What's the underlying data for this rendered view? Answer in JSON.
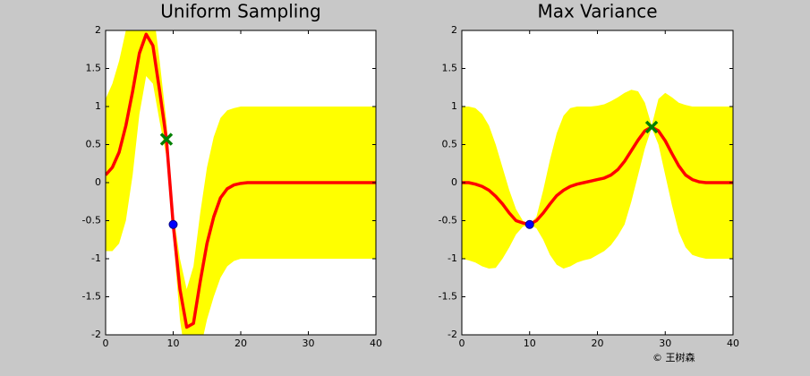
{
  "chart_data": [
    {
      "type": "line",
      "title": "Uniform Sampling",
      "x": [
        0,
        1,
        2,
        3,
        4,
        5,
        6,
        7,
        8,
        9,
        10,
        11,
        12,
        13,
        14,
        15,
        16,
        17,
        18,
        19,
        20,
        21,
        22,
        23,
        24,
        25,
        26,
        27,
        28,
        29,
        30,
        31,
        32,
        33,
        34,
        35,
        36,
        37,
        38,
        39,
        40
      ],
      "mean": {
        "color": "#ff0000",
        "values": [
          0.1,
          0.2,
          0.4,
          0.75,
          1.2,
          1.7,
          1.95,
          1.8,
          1.2,
          0.57,
          -0.55,
          -1.4,
          -1.9,
          -1.85,
          -1.3,
          -0.8,
          -0.45,
          -0.2,
          -0.08,
          -0.03,
          -0.01,
          0,
          0,
          0,
          0,
          0,
          0,
          0,
          0,
          0,
          0,
          0,
          0,
          0,
          0,
          0,
          0,
          0,
          0,
          0,
          0
        ]
      },
      "band": {
        "color": "#ffff00",
        "upper": [
          1.1,
          1.3,
          1.6,
          2.0,
          2.3,
          2.5,
          2.5,
          2.3,
          1.6,
          0.8,
          -0.4,
          -1.0,
          -1.4,
          -1.1,
          -0.4,
          0.2,
          0.6,
          0.85,
          0.95,
          0.98,
          1,
          1,
          1,
          1,
          1,
          1,
          1,
          1,
          1,
          1,
          1,
          1,
          1,
          1,
          1,
          1,
          1,
          1,
          1,
          1,
          1
        ],
        "lower": [
          -0.9,
          -0.9,
          -0.8,
          -0.5,
          0.1,
          0.9,
          1.4,
          1.3,
          0.8,
          0.35,
          -0.7,
          -1.8,
          -2.4,
          -2.6,
          -2.2,
          -1.8,
          -1.5,
          -1.25,
          -1.1,
          -1.03,
          -1,
          -1,
          -1,
          -1,
          -1,
          -1,
          -1,
          -1,
          -1,
          -1,
          -1,
          -1,
          -1,
          -1,
          -1,
          -1,
          -1,
          -1,
          -1,
          -1,
          -1
        ]
      },
      "points": [
        {
          "x": 10,
          "y": -0.55,
          "marker": "circle",
          "color": "#0000ff"
        },
        {
          "x": 9,
          "y": 0.57,
          "marker": "cross",
          "color": "#008000"
        }
      ],
      "xlim": [
        0,
        40
      ],
      "ylim": [
        -2,
        2
      ],
      "xticks": [
        0,
        10,
        20,
        30,
        40
      ],
      "yticks": [
        -2,
        -1.5,
        -1,
        -0.5,
        0,
        0.5,
        1,
        1.5,
        2
      ]
    },
    {
      "type": "line",
      "title": "Max Variance",
      "x": [
        0,
        1,
        2,
        3,
        4,
        5,
        6,
        7,
        8,
        9,
        10,
        11,
        12,
        13,
        14,
        15,
        16,
        17,
        18,
        19,
        20,
        21,
        22,
        23,
        24,
        25,
        26,
        27,
        28,
        29,
        30,
        31,
        32,
        33,
        34,
        35,
        36,
        37,
        38,
        39,
        40
      ],
      "mean": {
        "color": "#ff0000",
        "values": [
          0,
          0,
          -0.02,
          -0.05,
          -0.1,
          -0.18,
          -0.28,
          -0.4,
          -0.5,
          -0.53,
          -0.55,
          -0.5,
          -0.4,
          -0.28,
          -0.17,
          -0.1,
          -0.05,
          -0.02,
          0,
          0.02,
          0.04,
          0.06,
          0.1,
          0.17,
          0.28,
          0.42,
          0.56,
          0.68,
          0.73,
          0.68,
          0.55,
          0.38,
          0.22,
          0.1,
          0.04,
          0.01,
          0,
          0,
          0,
          0,
          0
        ]
      },
      "band": {
        "color": "#ffff00",
        "upper": [
          1,
          1,
          0.98,
          0.9,
          0.75,
          0.5,
          0.2,
          -0.1,
          -0.35,
          -0.5,
          -0.55,
          -0.45,
          -0.1,
          0.3,
          0.65,
          0.88,
          0.98,
          1,
          1,
          1,
          1.01,
          1.03,
          1.07,
          1.12,
          1.18,
          1.22,
          1.2,
          1.05,
          0.75,
          1.1,
          1.18,
          1.12,
          1.05,
          1.02,
          1,
          1,
          1,
          1,
          1,
          1,
          1
        ],
        "lower": [
          -1,
          -1.02,
          -1.05,
          -1.1,
          -1.13,
          -1.12,
          -1.0,
          -0.85,
          -0.68,
          -0.58,
          -0.55,
          -0.6,
          -0.75,
          -0.95,
          -1.08,
          -1.13,
          -1.1,
          -1.05,
          -1.02,
          -1,
          -0.95,
          -0.9,
          -0.82,
          -0.7,
          -0.55,
          -0.25,
          0.1,
          0.45,
          0.72,
          0.5,
          0.1,
          -0.3,
          -0.65,
          -0.85,
          -0.95,
          -0.98,
          -1,
          -1,
          -1,
          -1,
          -1
        ]
      },
      "points": [
        {
          "x": 10,
          "y": -0.55,
          "marker": "circle",
          "color": "#0000ff"
        },
        {
          "x": 28,
          "y": 0.73,
          "marker": "cross",
          "color": "#008000"
        }
      ],
      "xlim": [
        0,
        40
      ],
      "ylim": [
        -2,
        2
      ],
      "xticks": [
        0,
        10,
        20,
        30,
        40
      ],
      "yticks": [
        -2,
        -1.5,
        -1,
        -0.5,
        0,
        0.5,
        1,
        1.5,
        2
      ]
    }
  ],
  "watermark": "© 王树森"
}
